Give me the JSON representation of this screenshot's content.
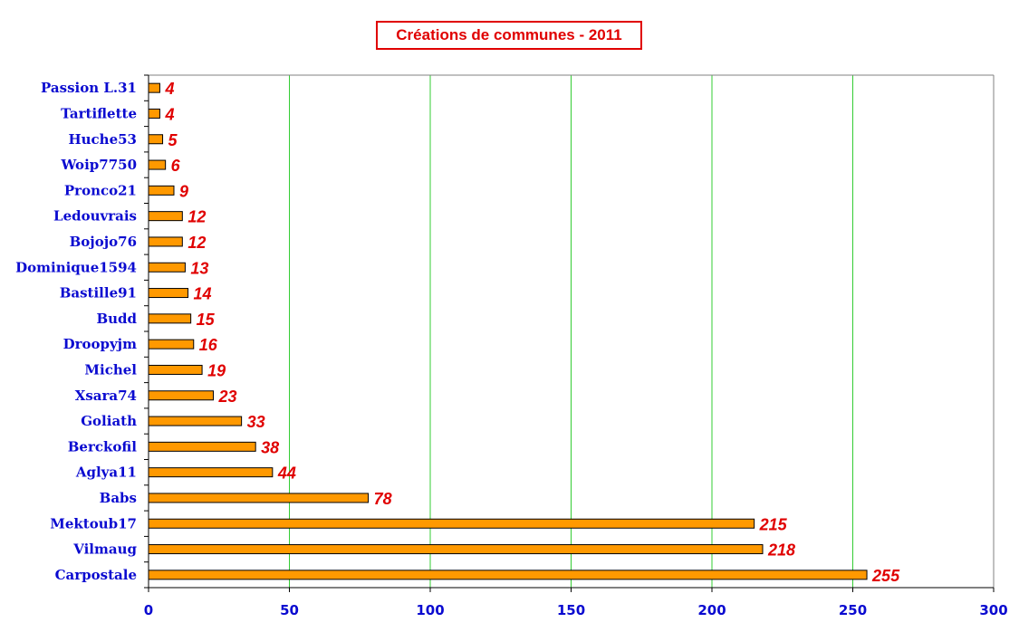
{
  "chart_data": {
    "type": "bar",
    "orientation": "horizontal",
    "title": "Créations de communes - 2011",
    "categories": [
      "Passion L.31",
      "Tartiflette",
      "Huche53",
      "Woip7750",
      "Pronco21",
      "Ledouvrais",
      "Bojojo76",
      "Dominique1594",
      "Bastille91",
      "Budd",
      "Droopyjm",
      "Michel",
      "Xsara74",
      "Goliath",
      "Berckofil",
      "Aglya11",
      "Babs",
      "Mektoub17",
      "Vilmaug",
      "Carpostale"
    ],
    "values": [
      4,
      4,
      5,
      6,
      9,
      12,
      12,
      13,
      14,
      15,
      16,
      19,
      23,
      33,
      38,
      44,
      78,
      215,
      218,
      255
    ],
    "xlim": [
      0,
      300
    ],
    "xticks": [
      0,
      50,
      100,
      150,
      200,
      250,
      300
    ],
    "grid": true,
    "colors": {
      "bar": "#ff9900",
      "grid": "#33cc33",
      "label": "#0a0ad0",
      "value": "#e00000"
    }
  }
}
